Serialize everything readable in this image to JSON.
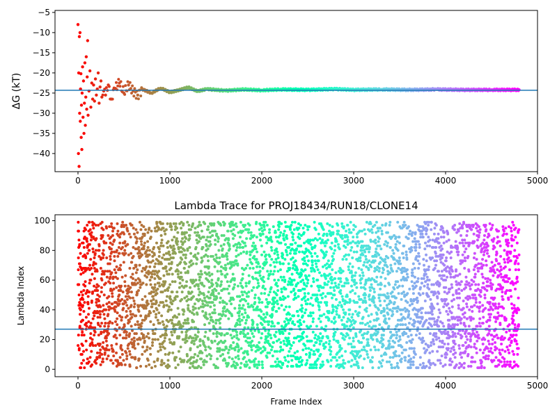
{
  "chart_data": [
    {
      "type": "scatter",
      "title": "",
      "xlabel": "",
      "ylabel": "ΔG (kT)",
      "xlim": [
        -250,
        5000
      ],
      "ylim": [
        -44.5,
        -4.5
      ],
      "xticks": [
        0,
        1000,
        2000,
        3000,
        4000,
        5000
      ],
      "yticks": [
        -40,
        -35,
        -30,
        -25,
        -20,
        -15,
        -10,
        -5
      ],
      "hline": -24.3,
      "colormap": "rainbow",
      "frames": 4800,
      "series": [
        {
          "points": [
            [
              0,
              -8.0
            ],
            [
              5,
              -40.0
            ],
            [
              8,
              -20.0
            ],
            [
              12,
              -43.2
            ],
            [
              15,
              -11.0
            ],
            [
              18,
              -30.0
            ],
            [
              22,
              -10.0
            ],
            [
              25,
              -32.0
            ],
            [
              28,
              -24.0
            ],
            [
              32,
              -20.2
            ],
            [
              35,
              -36.0
            ],
            [
              38,
              -28.0
            ],
            [
              42,
              -39.0
            ],
            [
              45,
              -25.0
            ],
            [
              50,
              -18.5
            ],
            [
              55,
              -31.0
            ],
            [
              60,
              -22.0
            ],
            [
              65,
              -35.0
            ],
            [
              70,
              -27.5
            ],
            [
              75,
              -17.5
            ],
            [
              80,
              -33.0
            ],
            [
              85,
              -26.0
            ],
            [
              90,
              -16.0
            ],
            [
              95,
              -29.0
            ],
            [
              100,
              -21.0
            ],
            [
              105,
              -12.0
            ],
            [
              110,
              -30.5
            ],
            [
              120,
              -24.5
            ],
            [
              130,
              -19.5
            ],
            [
              140,
              -28.5
            ],
            [
              150,
              -22.5
            ],
            [
              160,
              -26.5
            ],
            [
              170,
              -23.0
            ],
            [
              180,
              -27.0
            ],
            [
              190,
              -21.5
            ],
            [
              200,
              -25.5
            ],
            [
              210,
              -24.0
            ],
            [
              220,
              -20.0
            ],
            [
              230,
              -27.5
            ],
            [
              240,
              -23.5
            ],
            [
              250,
              -22.0
            ],
            [
              260,
              -26.0
            ],
            [
              280,
              -24.5
            ],
            [
              300,
              -25.5
            ],
            [
              330,
              -23.0
            ],
            [
              360,
              -26.5
            ],
            [
              400,
              -24.0
            ],
            [
              450,
              -22.5
            ],
            [
              500,
              -25.0
            ],
            [
              550,
              -23.0
            ],
            [
              600,
              -24.5
            ],
            [
              650,
              -25.5
            ],
            [
              700,
              -24.0
            ],
            [
              800,
              -25.0
            ],
            [
              900,
              -23.8
            ],
            [
              1000,
              -24.8
            ],
            [
              1100,
              -24.2
            ],
            [
              1200,
              -23.6
            ],
            [
              1300,
              -24.6
            ],
            [
              1400,
              -24.0
            ],
            [
              1600,
              -24.4
            ],
            [
              1800,
              -24.1
            ],
            [
              2000,
              -24.3
            ],
            [
              2200,
              -24.1
            ],
            [
              2500,
              -24.2
            ],
            [
              2800,
              -24.0
            ],
            [
              3000,
              -24.2
            ],
            [
              3300,
              -24.1
            ],
            [
              3600,
              -24.2
            ],
            [
              3900,
              -24.1
            ],
            [
              4200,
              -24.2
            ],
            [
              4500,
              -24.2
            ],
            [
              4800,
              -24.2
            ]
          ]
        }
      ]
    },
    {
      "type": "scatter",
      "title": "Lambda Trace for PROJ18434/RUN18/CLONE14",
      "xlabel": "Frame Index",
      "ylabel": "Lambda Index",
      "xlim": [
        -250,
        5000
      ],
      "ylim": [
        -5,
        104
      ],
      "xticks": [
        0,
        1000,
        2000,
        3000,
        4000,
        5000
      ],
      "yticks": [
        0,
        20,
        40,
        60,
        80,
        100
      ],
      "hline": 27,
      "colormap": "rainbow",
      "frames": 4800,
      "lambda_range": [
        1,
        99
      ],
      "points_shown": 4800
    }
  ]
}
